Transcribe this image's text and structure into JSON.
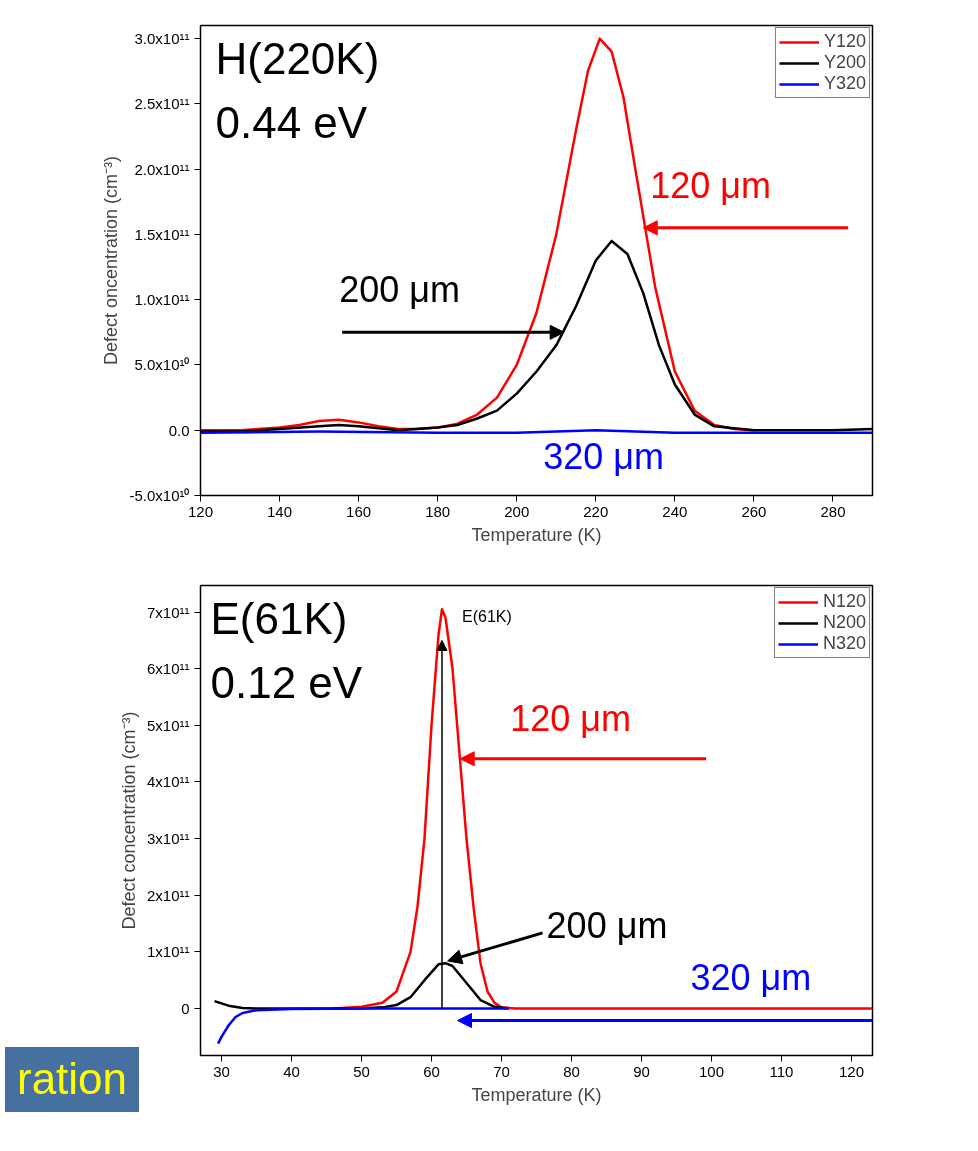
{
  "chart_data": [
    {
      "type": "line",
      "xlabel": "Temperature (K)",
      "ylabel": "Defect oncentration (cm⁻³)",
      "xlim": [
        120,
        290
      ],
      "xticks": [
        120,
        140,
        160,
        180,
        200,
        220,
        240,
        260,
        280
      ],
      "ylim": [
        -50000000000.0,
        310000000000.0
      ],
      "yticks": [
        {
          "value": -50000000000.0,
          "label": "-5.0x10¹⁰"
        },
        {
          "value": 0,
          "label": "0.0"
        },
        {
          "value": 50000000000.0,
          "label": "5.0x10¹⁰"
        },
        {
          "value": 100000000000.0,
          "label": "1.0x10¹¹"
        },
        {
          "value": 150000000000.0,
          "label": "1.5x10¹¹"
        },
        {
          "value": 200000000000.0,
          "label": "2.0x10¹¹"
        },
        {
          "value": 250000000000.0,
          "label": "2.5x10¹¹"
        },
        {
          "value": 300000000000.0,
          "label": "3.0x10¹¹"
        }
      ],
      "legend": "top right",
      "series": [
        {
          "name": "Y120",
          "color": "#ff0000",
          "x": [
            120,
            130,
            140,
            145,
            150,
            155,
            160,
            165,
            170,
            175,
            180,
            185,
            190,
            195,
            200,
            205,
            210,
            215,
            218,
            221,
            224,
            227,
            230,
            235,
            240,
            245,
            250,
            255,
            260
          ],
          "values": [
            0,
            0,
            2000000000.0,
            4000000000.0,
            7000000000.0,
            8000000000.0,
            6000000000.0,
            3000000000.0,
            1000000000.0,
            1000000000.0,
            2000000000.0,
            5000000000.0,
            12000000000.0,
            25000000000.0,
            50000000000.0,
            90000000000.0,
            150000000000.0,
            230000000000.0,
            275000000000.0,
            300000000000.0,
            290000000000.0,
            255000000000.0,
            200000000000.0,
            110000000000.0,
            45000000000.0,
            15000000000.0,
            4000000000.0,
            1000000000.0,
            0
          ]
        },
        {
          "name": "Y200",
          "color": "#000000",
          "x": [
            120,
            130,
            140,
            150,
            155,
            160,
            170,
            180,
            185,
            190,
            195,
            200,
            205,
            210,
            215,
            220,
            224,
            228,
            232,
            236,
            240,
            245,
            250,
            260,
            270,
            280,
            290
          ],
          "values": [
            -1000000000.0,
            -1000000000.0,
            1000000000.0,
            3000000000.0,
            4000000000.0,
            3000000000.0,
            0,
            2000000000.0,
            4000000000.0,
            9000000000.0,
            15000000000.0,
            28000000000.0,
            45000000000.0,
            65000000000.0,
            95000000000.0,
            130000000000.0,
            145000000000.0,
            135000000000.0,
            105000000000.0,
            65000000000.0,
            35000000000.0,
            12000000000.0,
            3000000000.0,
            0,
            0,
            0,
            1000000000.0
          ]
        },
        {
          "name": "Y320",
          "color": "#0000ff",
          "x": [
            120,
            150,
            180,
            200,
            220,
            240,
            260,
            290
          ],
          "values": [
            -2000000000.0,
            -1000000000.0,
            -2000000000.0,
            -2000000000.0,
            0,
            -2000000000.0,
            -2000000000.0,
            -2000000000.0
          ]
        }
      ],
      "annotations": [
        "H(220K)",
        "0.44 eV",
        {
          "text": "120 μm",
          "x": 232,
          "y": 155000000000.0
        },
        {
          "text": "200 μm",
          "x": 212,
          "y": 75000000000.0
        },
        {
          "text": "320 μm",
          "x": 222,
          "y": 0
        }
      ]
    },
    {
      "type": "line",
      "xlabel": "Temperature (K)",
      "ylabel": "Defect concentration (cm⁻³)",
      "xlim": [
        27,
        123
      ],
      "xticks": [
        30,
        40,
        50,
        60,
        70,
        80,
        90,
        100,
        110,
        120
      ],
      "ylim": [
        -83000000000.0,
        747000000000.0
      ],
      "yticks": [
        {
          "value": 0,
          "label": "0"
        },
        {
          "value": 100000000000.0,
          "label": "1x10¹¹"
        },
        {
          "value": 200000000000.0,
          "label": "2x10¹¹"
        },
        {
          "value": 300000000000.0,
          "label": "3x10¹¹"
        },
        {
          "value": 400000000000.0,
          "label": "4x10¹¹"
        },
        {
          "value": 500000000000.0,
          "label": "5x10¹¹"
        },
        {
          "value": 600000000000.0,
          "label": "6x10¹¹"
        },
        {
          "value": 700000000000.0,
          "label": "7x10¹¹"
        }
      ],
      "legend": "top right",
      "series": [
        {
          "name": "N120",
          "color": "#ff0000",
          "x": [
            46,
            50,
            53,
            55,
            57,
            58,
            59,
            60,
            61,
            61.5,
            62,
            63,
            64,
            65,
            66,
            67,
            68,
            69,
            70,
            72,
            123
          ],
          "values": [
            0,
            3000000000.0,
            10000000000.0,
            30000000000.0,
            100000000000.0,
            180000000000.0,
            300000000000.0,
            500000000000.0,
            660000000000.0,
            705000000000.0,
            690000000000.0,
            600000000000.0,
            450000000000.0,
            300000000000.0,
            180000000000.0,
            80000000000.0,
            30000000000.0,
            10000000000.0,
            2000000000.0,
            0,
            0
          ]
        },
        {
          "name": "N200",
          "color": "#000000",
          "x": [
            29,
            31,
            33,
            35,
            50,
            53,
            55,
            57,
            59,
            61,
            62,
            63,
            65,
            67,
            69,
            71
          ],
          "values": [
            13000000000.0,
            5000000000.0,
            1000000000.0,
            0,
            0,
            2000000000.0,
            6000000000.0,
            20000000000.0,
            50000000000.0,
            78000000000.0,
            80000000000.0,
            75000000000.0,
            45000000000.0,
            15000000000.0,
            3000000000.0,
            0
          ]
        },
        {
          "name": "N320",
          "color": "#0000ff",
          "x": [
            29.5,
            30,
            31,
            32,
            33,
            35,
            40,
            50,
            71
          ],
          "values": [
            -62000000000.0,
            -50000000000.0,
            -30000000000.0,
            -15000000000.0,
            -8000000000.0,
            -3000000000.0,
            -1000000000.0,
            0,
            0
          ]
        }
      ],
      "annotations": [
        "E(61K)",
        "0.12 eV",
        {
          "text": "E(61K)",
          "x": 61.5,
          "y": 650000000000.0
        },
        {
          "text": "120 μm",
          "x": 64.1,
          "y": 441000000000.0
        },
        {
          "text": "200 μm",
          "x": 62.3,
          "y": 84000000000.0
        },
        "320 μm",
        "ration"
      ]
    }
  ]
}
